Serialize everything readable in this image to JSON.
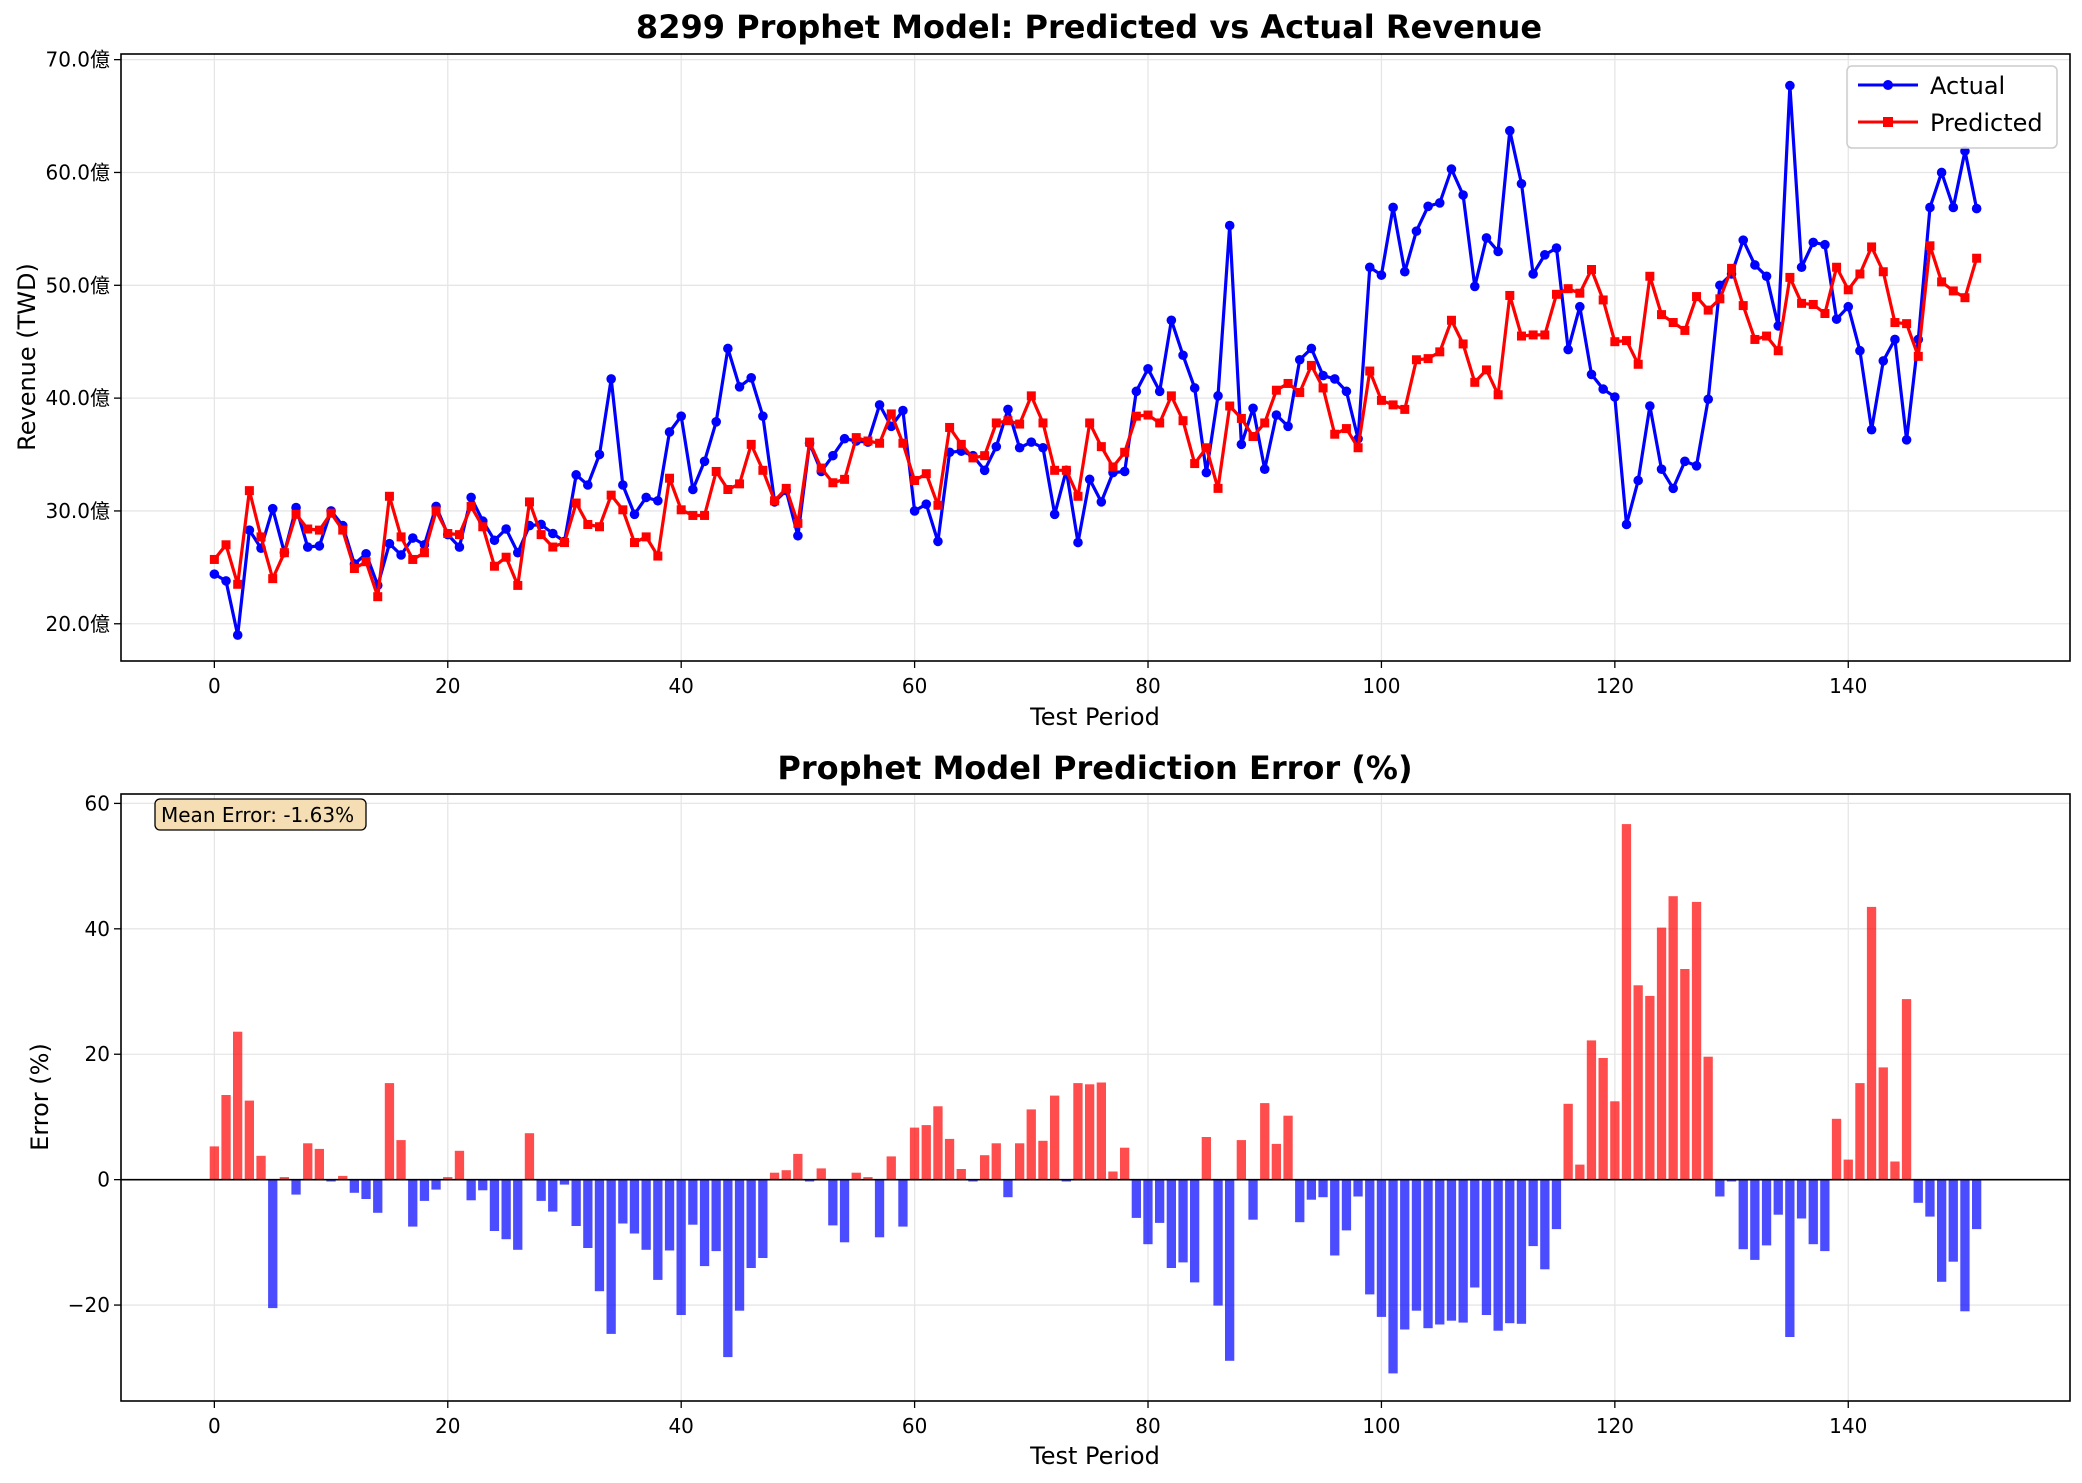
{
  "chart_data": [
    {
      "type": "line",
      "title": "8299 Prophet Model: Predicted vs Actual Revenue",
      "xlabel": "Test Period",
      "ylabel": "Revenue (TWD)",
      "xlim": [
        -8,
        159
      ],
      "ylim": [
        16.7,
        70.5
      ],
      "x_ticks": [
        0,
        20,
        40,
        60,
        80,
        100,
        120,
        140
      ],
      "y_ticks": [
        20,
        30,
        40,
        50,
        60,
        70
      ],
      "y_tick_labels": [
        "20.0億",
        "30.0億",
        "40.0億",
        "50.0億",
        "60.0億",
        "70.0億"
      ],
      "grid": true,
      "legend_position": "top-right",
      "series": [
        {
          "name": "Actual",
          "color": "#0000ff",
          "marker": "circle",
          "values": [
            24.4,
            23.8,
            19.0,
            28.3,
            26.7,
            30.2,
            26.3,
            30.3,
            26.8,
            26.9,
            30.0,
            28.7,
            25.3,
            26.2,
            23.4,
            27.1,
            26.1,
            27.6,
            27.0,
            30.4,
            27.9,
            26.8,
            31.2,
            29.1,
            27.4,
            28.4,
            26.3,
            28.7,
            28.8,
            28.0,
            27.3,
            33.2,
            32.3,
            35.0,
            41.7,
            32.3,
            29.7,
            31.2,
            30.9,
            37.0,
            38.4,
            31.9,
            34.4,
            37.9,
            44.4,
            41.0,
            41.8,
            38.4,
            30.8,
            31.8,
            27.8,
            36.0,
            33.5,
            34.9,
            36.4,
            36.2,
            36.1,
            39.4,
            37.5,
            38.9,
            30.0,
            30.6,
            27.3,
            35.2,
            35.3,
            34.9,
            33.6,
            35.7,
            39.0,
            35.6,
            36.1,
            35.6,
            29.7,
            33.6,
            27.2,
            32.8,
            30.8,
            33.4,
            33.5,
            40.6,
            42.6,
            40.6,
            46.9,
            43.8,
            40.9,
            33.4,
            40.2,
            55.3,
            35.9,
            39.1,
            33.7,
            38.5,
            37.5,
            43.4,
            44.4,
            42.0,
            41.7,
            40.6,
            36.4,
            51.6,
            50.9,
            56.9,
            51.2,
            54.8,
            57.0,
            57.3,
            60.3,
            58.0,
            49.9,
            54.2,
            53.0,
            63.7,
            59.0,
            51.0,
            52.7,
            53.3,
            44.3,
            48.1,
            42.1,
            40.8,
            40.1,
            28.8,
            32.7,
            39.3,
            33.7,
            32.0,
            34.4,
            34.0,
            39.9,
            50.0,
            51.0,
            54.0,
            51.8,
            50.8,
            46.4,
            67.7,
            51.6,
            53.8,
            53.6,
            47.0,
            48.1,
            44.2,
            37.2,
            43.3,
            45.2,
            36.3,
            45.2,
            56.9,
            60.0,
            56.9,
            61.9,
            56.8
          ]
        },
        {
          "name": "Predicted",
          "color": "#ff0000",
          "marker": "square",
          "values": [
            25.7,
            27.0,
            23.5,
            31.8,
            27.7,
            24.0,
            26.3,
            29.7,
            28.4,
            28.3,
            29.8,
            28.3,
            24.9,
            25.5,
            22.4,
            31.3,
            27.7,
            25.7,
            26.3,
            30.0,
            28.0,
            27.9,
            30.4,
            28.6,
            25.1,
            25.9,
            23.4,
            30.8,
            27.9,
            26.8,
            27.2,
            30.7,
            28.8,
            28.6,
            31.4,
            30.1,
            27.2,
            27.7,
            26.0,
            32.9,
            30.1,
            29.6,
            29.6,
            33.5,
            31.9,
            32.4,
            35.9,
            33.6,
            30.9,
            32.0,
            28.9,
            36.1,
            33.8,
            32.5,
            32.8,
            36.5,
            36.2,
            36.0,
            38.6,
            36.0,
            32.7,
            33.3,
            30.5,
            37.4,
            35.9,
            34.7,
            34.9,
            37.8,
            38.0,
            37.7,
            40.2,
            37.8,
            33.6,
            33.6,
            31.3,
            37.8,
            35.7,
            33.9,
            35.2,
            38.4,
            38.5,
            37.8,
            40.2,
            38.0,
            34.2,
            35.6,
            32.0,
            39.3,
            38.2,
            36.6,
            37.8,
            40.7,
            41.3,
            40.5,
            42.9,
            40.9,
            36.8,
            37.3,
            35.6,
            42.4,
            39.8,
            39.4,
            39.0,
            43.4,
            43.5,
            44.1,
            46.9,
            44.8,
            41.4,
            42.5,
            40.3,
            49.1,
            45.5,
            45.6,
            45.6,
            49.2,
            49.7,
            49.3,
            51.4,
            48.7,
            45.0,
            45.1,
            43.0,
            50.8,
            47.4,
            46.7,
            46.0,
            49.0,
            47.8,
            48.8,
            51.5,
            48.2,
            45.2,
            45.5,
            44.2,
            50.7,
            48.4,
            48.3,
            47.5,
            51.6,
            49.6,
            51.0,
            53.4,
            51.2,
            46.7,
            46.6,
            43.7,
            53.5,
            50.3,
            49.5,
            48.9,
            52.4
          ]
        }
      ]
    },
    {
      "type": "bar",
      "title": "Prophet Model Prediction Error (%)",
      "xlabel": "Test Period",
      "ylabel": "Error (%)",
      "xlim": [
        -8,
        159
      ],
      "ylim": [
        -35.3,
        61.5
      ],
      "x_ticks": [
        0,
        20,
        40,
        60,
        80,
        100,
        120,
        140
      ],
      "y_ticks": [
        -20,
        0,
        20,
        40,
        60
      ],
      "y_tick_labels": [
        "−20",
        "0",
        "20",
        "40",
        "60"
      ],
      "grid": true,
      "positive_color": "#ff0000",
      "negative_color": "#0000ff",
      "annotation": "Mean Error: -1.63%",
      "values": [
        5.3,
        13.5,
        23.6,
        12.6,
        3.8,
        -20.5,
        0.4,
        -2.4,
        5.8,
        4.9,
        -0.3,
        0.6,
        -2.1,
        -3.1,
        -5.3,
        15.4,
        6.3,
        -7.5,
        -3.4,
        -1.6,
        0.4,
        4.6,
        -3.3,
        -1.7,
        -8.2,
        -9.5,
        -11.2,
        7.4,
        -3.4,
        -5.1,
        -0.8,
        -7.4,
        -10.9,
        -17.8,
        -24.6,
        -7.0,
        -8.6,
        -11.2,
        -16.0,
        -11.3,
        -21.6,
        -7.2,
        -13.8,
        -11.4,
        -28.3,
        -20.9,
        -14.1,
        -12.5,
        1.1,
        1.5,
        4.1,
        -0.3,
        1.8,
        -7.3,
        -10.0,
        1.1,
        0.4,
        -9.2,
        3.7,
        -7.5,
        8.3,
        8.7,
        11.7,
        6.5,
        1.7,
        -0.3,
        3.9,
        5.8,
        -2.8,
        5.8,
        11.2,
        6.2,
        13.4,
        -0.3,
        15.4,
        15.2,
        15.5,
        1.3,
        5.1,
        -6.1,
        -10.3,
        -6.9,
        -14.1,
        -13.2,
        -16.4,
        6.8,
        -20.1,
        -28.9,
        6.3,
        -6.4,
        12.2,
        5.7,
        10.2,
        -6.8,
        -3.2,
        -2.8,
        -12.1,
        -8.1,
        -2.7,
        -18.3,
        -21.9,
        -30.9,
        -23.9,
        -20.9,
        -23.7,
        -23.1,
        -22.5,
        -22.8,
        -17.2,
        -21.6,
        -24.1,
        -22.9,
        -23.0,
        -10.6,
        -14.3,
        -7.9,
        12.1,
        2.4,
        22.2,
        19.4,
        12.5,
        56.7,
        31.0,
        29.3,
        40.2,
        45.2,
        33.6,
        44.3,
        19.6,
        -2.7,
        -0.3,
        -11.1,
        -12.8,
        -10.5,
        -5.6,
        -25.1,
        -6.2,
        -10.3,
        -11.4,
        9.7,
        3.2,
        15.4,
        43.5,
        17.9,
        2.9,
        28.8,
        -3.7,
        -5.9,
        -16.3,
        -13.1,
        -21.0,
        -7.9
      ]
    }
  ]
}
